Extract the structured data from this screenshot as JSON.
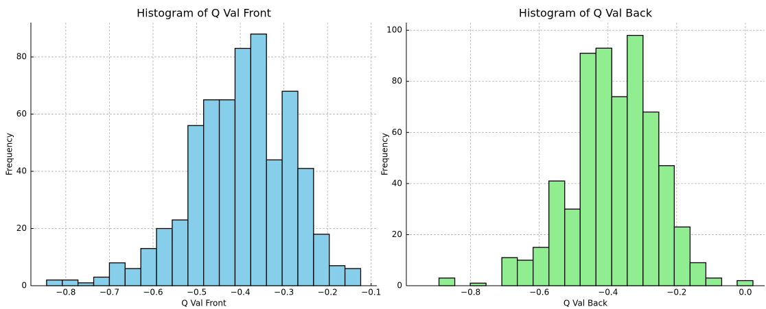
{
  "chart_data": [
    {
      "type": "histogram",
      "title": "Histogram of Q Val Front",
      "xlabel": "Q Val Front",
      "ylabel": "Frequency",
      "bins": [
        -0.844,
        -0.808,
        -0.772,
        -0.736,
        -0.7,
        -0.664,
        -0.628,
        -0.592,
        -0.556,
        -0.52,
        -0.484,
        -0.448,
        -0.412,
        -0.376,
        -0.34,
        -0.304,
        -0.268,
        -0.232,
        -0.196,
        -0.16,
        -0.124
      ],
      "values": [
        2,
        2,
        1,
        3,
        8,
        6,
        13,
        20,
        23,
        56,
        65,
        65,
        83,
        88,
        44,
        68,
        41,
        18,
        7,
        6
      ],
      "color": "#87ceeb",
      "edgecolor": "#000000",
      "grid": true,
      "xlim": [
        -0.88,
        -0.087
      ],
      "ylim": [
        0,
        92
      ],
      "xticks": [
        {
          "value": -0.8,
          "label": "−0.8"
        },
        {
          "value": -0.7,
          "label": "−0.7"
        },
        {
          "value": -0.6,
          "label": "−0.6"
        },
        {
          "value": -0.5,
          "label": "−0.5"
        },
        {
          "value": -0.4,
          "label": "−0.4"
        },
        {
          "value": -0.3,
          "label": "−0.3"
        },
        {
          "value": -0.2,
          "label": "−0.2"
        },
        {
          "value": -0.1,
          "label": "−0.1"
        }
      ],
      "yticks": [
        0,
        20,
        40,
        60,
        80
      ]
    },
    {
      "type": "histogram",
      "title": "Histogram of Q Val Back",
      "xlabel": "Q Val Back",
      "ylabel": "Frequency",
      "bins": [
        -0.892,
        -0.846,
        -0.801,
        -0.755,
        -0.709,
        -0.664,
        -0.618,
        -0.572,
        -0.526,
        -0.481,
        -0.435,
        -0.389,
        -0.344,
        -0.298,
        -0.252,
        -0.207,
        -0.161,
        -0.115,
        -0.069,
        -0.024,
        0.022
      ],
      "values": [
        3,
        0,
        1,
        0,
        11,
        10,
        15,
        41,
        30,
        91,
        93,
        74,
        98,
        68,
        47,
        23,
        9,
        3,
        0,
        2
      ],
      "color": "#90ee90",
      "edgecolor": "#000000",
      "grid": true,
      "xlim": [
        -0.987,
        0.056
      ],
      "ylim": [
        0,
        103
      ],
      "xticks": [
        {
          "value": -0.8,
          "label": "−0.8"
        },
        {
          "value": -0.6,
          "label": "−0.6"
        },
        {
          "value": -0.4,
          "label": "−0.4"
        },
        {
          "value": -0.2,
          "label": "−0.2"
        },
        {
          "value": 0.0,
          "label": "0.0"
        }
      ],
      "yticks": [
        0,
        20,
        40,
        60,
        80,
        100
      ]
    }
  ]
}
